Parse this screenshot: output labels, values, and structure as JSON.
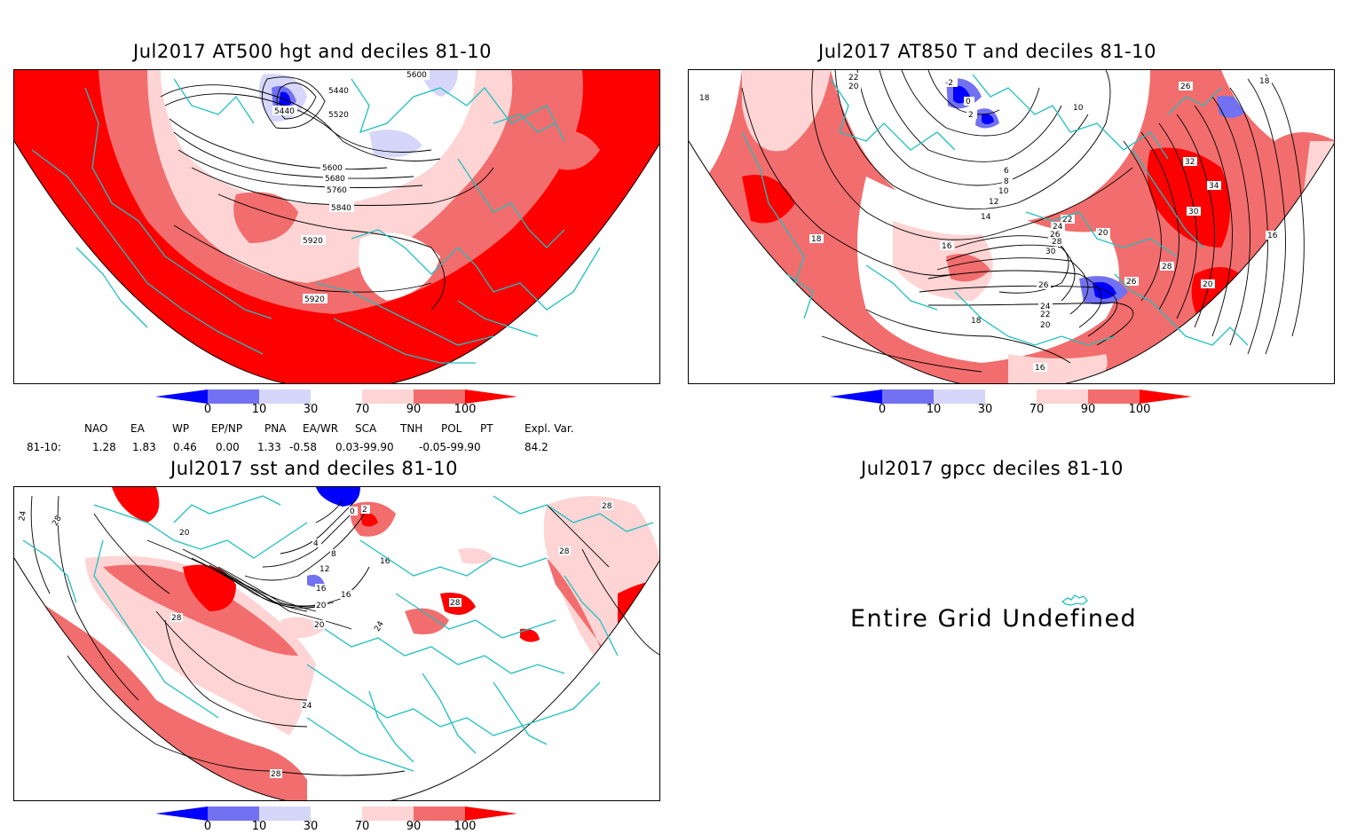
{
  "panels": {
    "hgt500": {
      "title": "Jul2017 AT500 hgt and deciles 81-10",
      "contour_labels": [
        "5440",
        "5440",
        "5520",
        "5600",
        "5600",
        "5680",
        "5760",
        "5840",
        "5920",
        "5920"
      ]
    },
    "t850": {
      "title": "Jul2017 AT850 T and deciles 81-10",
      "contour_labels": [
        "22",
        "20",
        "-2",
        "0",
        "2",
        "10",
        "26",
        "18",
        "18",
        "6",
        "8",
        "10",
        "12",
        "14",
        "16",
        "20",
        "22",
        "24",
        "26",
        "28",
        "30",
        "32",
        "34",
        "30",
        "26",
        "28",
        "20",
        "26",
        "24",
        "22",
        "20",
        "18",
        "16",
        "18",
        "16"
      ]
    },
    "sst": {
      "title": "Jul2017 sst and deciles 81-10",
      "contour_labels": [
        "24",
        "28",
        "20",
        "0",
        "2",
        "4",
        "8",
        "12",
        "16",
        "16",
        "20",
        "24",
        "28",
        "28",
        "28",
        "24",
        "28",
        "16",
        "20",
        "28"
      ]
    },
    "gpcc": {
      "title": "Jul2017 gpcc deciles 81-10",
      "message": "Entire Grid Undefined"
    }
  },
  "colorbar": {
    "labels": [
      "0",
      "10",
      "30",
      "70",
      "90",
      "100"
    ],
    "colors": [
      "#0000ff",
      "#7171f2",
      "#d6d6fa",
      "#ffffff",
      "#ffd4d4",
      "#f26d6d",
      "#ff0000"
    ]
  },
  "indices": {
    "headers": [
      "NAO",
      "EA",
      "WP",
      "EP/NP",
      "PNA",
      "EA/WR",
      "SCA",
      "TNH",
      "POL",
      "PT",
      "Expl. Var."
    ],
    "row_label": "81-10:",
    "values": [
      "1.28",
      "1.83",
      "0.46",
      "0.00",
      "1.33",
      "-0.58",
      "0.03",
      "-99.90",
      "-0.05",
      "-99.90",
      "84.2"
    ]
  }
}
